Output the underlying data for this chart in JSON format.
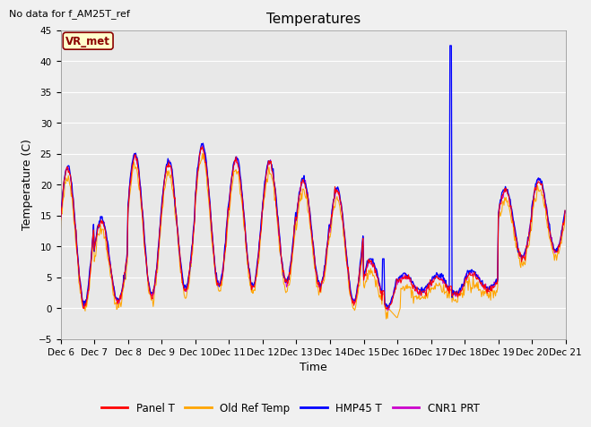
{
  "title": "Temperatures",
  "ylabel": "Temperature (C)",
  "xlabel": "Time",
  "note": "No data for f_AM25T_ref",
  "vr_met_label": "VR_met",
  "ylim": [
    -5,
    45
  ],
  "yticks": [
    -5,
    0,
    5,
    10,
    15,
    20,
    25,
    30,
    35,
    40,
    45
  ],
  "xtick_labels": [
    "Dec 6",
    "Dec 7",
    "Dec 8",
    "Dec 9",
    "Dec 10",
    "Dec 11",
    "Dec 12",
    "Dec 13",
    "Dec 14",
    "Dec 15",
    "Dec 16",
    "Dec 17",
    "Dec 18",
    "Dec 19",
    "Dec 20",
    "Dec 21"
  ],
  "colors": {
    "panel_t": "#ff0000",
    "old_ref_temp": "#ffa500",
    "hmp45_t": "#0000ff",
    "cnr1_prt": "#cc00cc"
  },
  "legend": [
    "Panel T",
    "Old Ref Temp",
    "HMP45 T",
    "CNR1 PRT"
  ],
  "background_color": "#e8e8e8",
  "fig_bg": "#f0f0f0",
  "title_fontsize": 11,
  "axis_fontsize": 9,
  "tick_fontsize": 7.5,
  "note_fontsize": 8
}
